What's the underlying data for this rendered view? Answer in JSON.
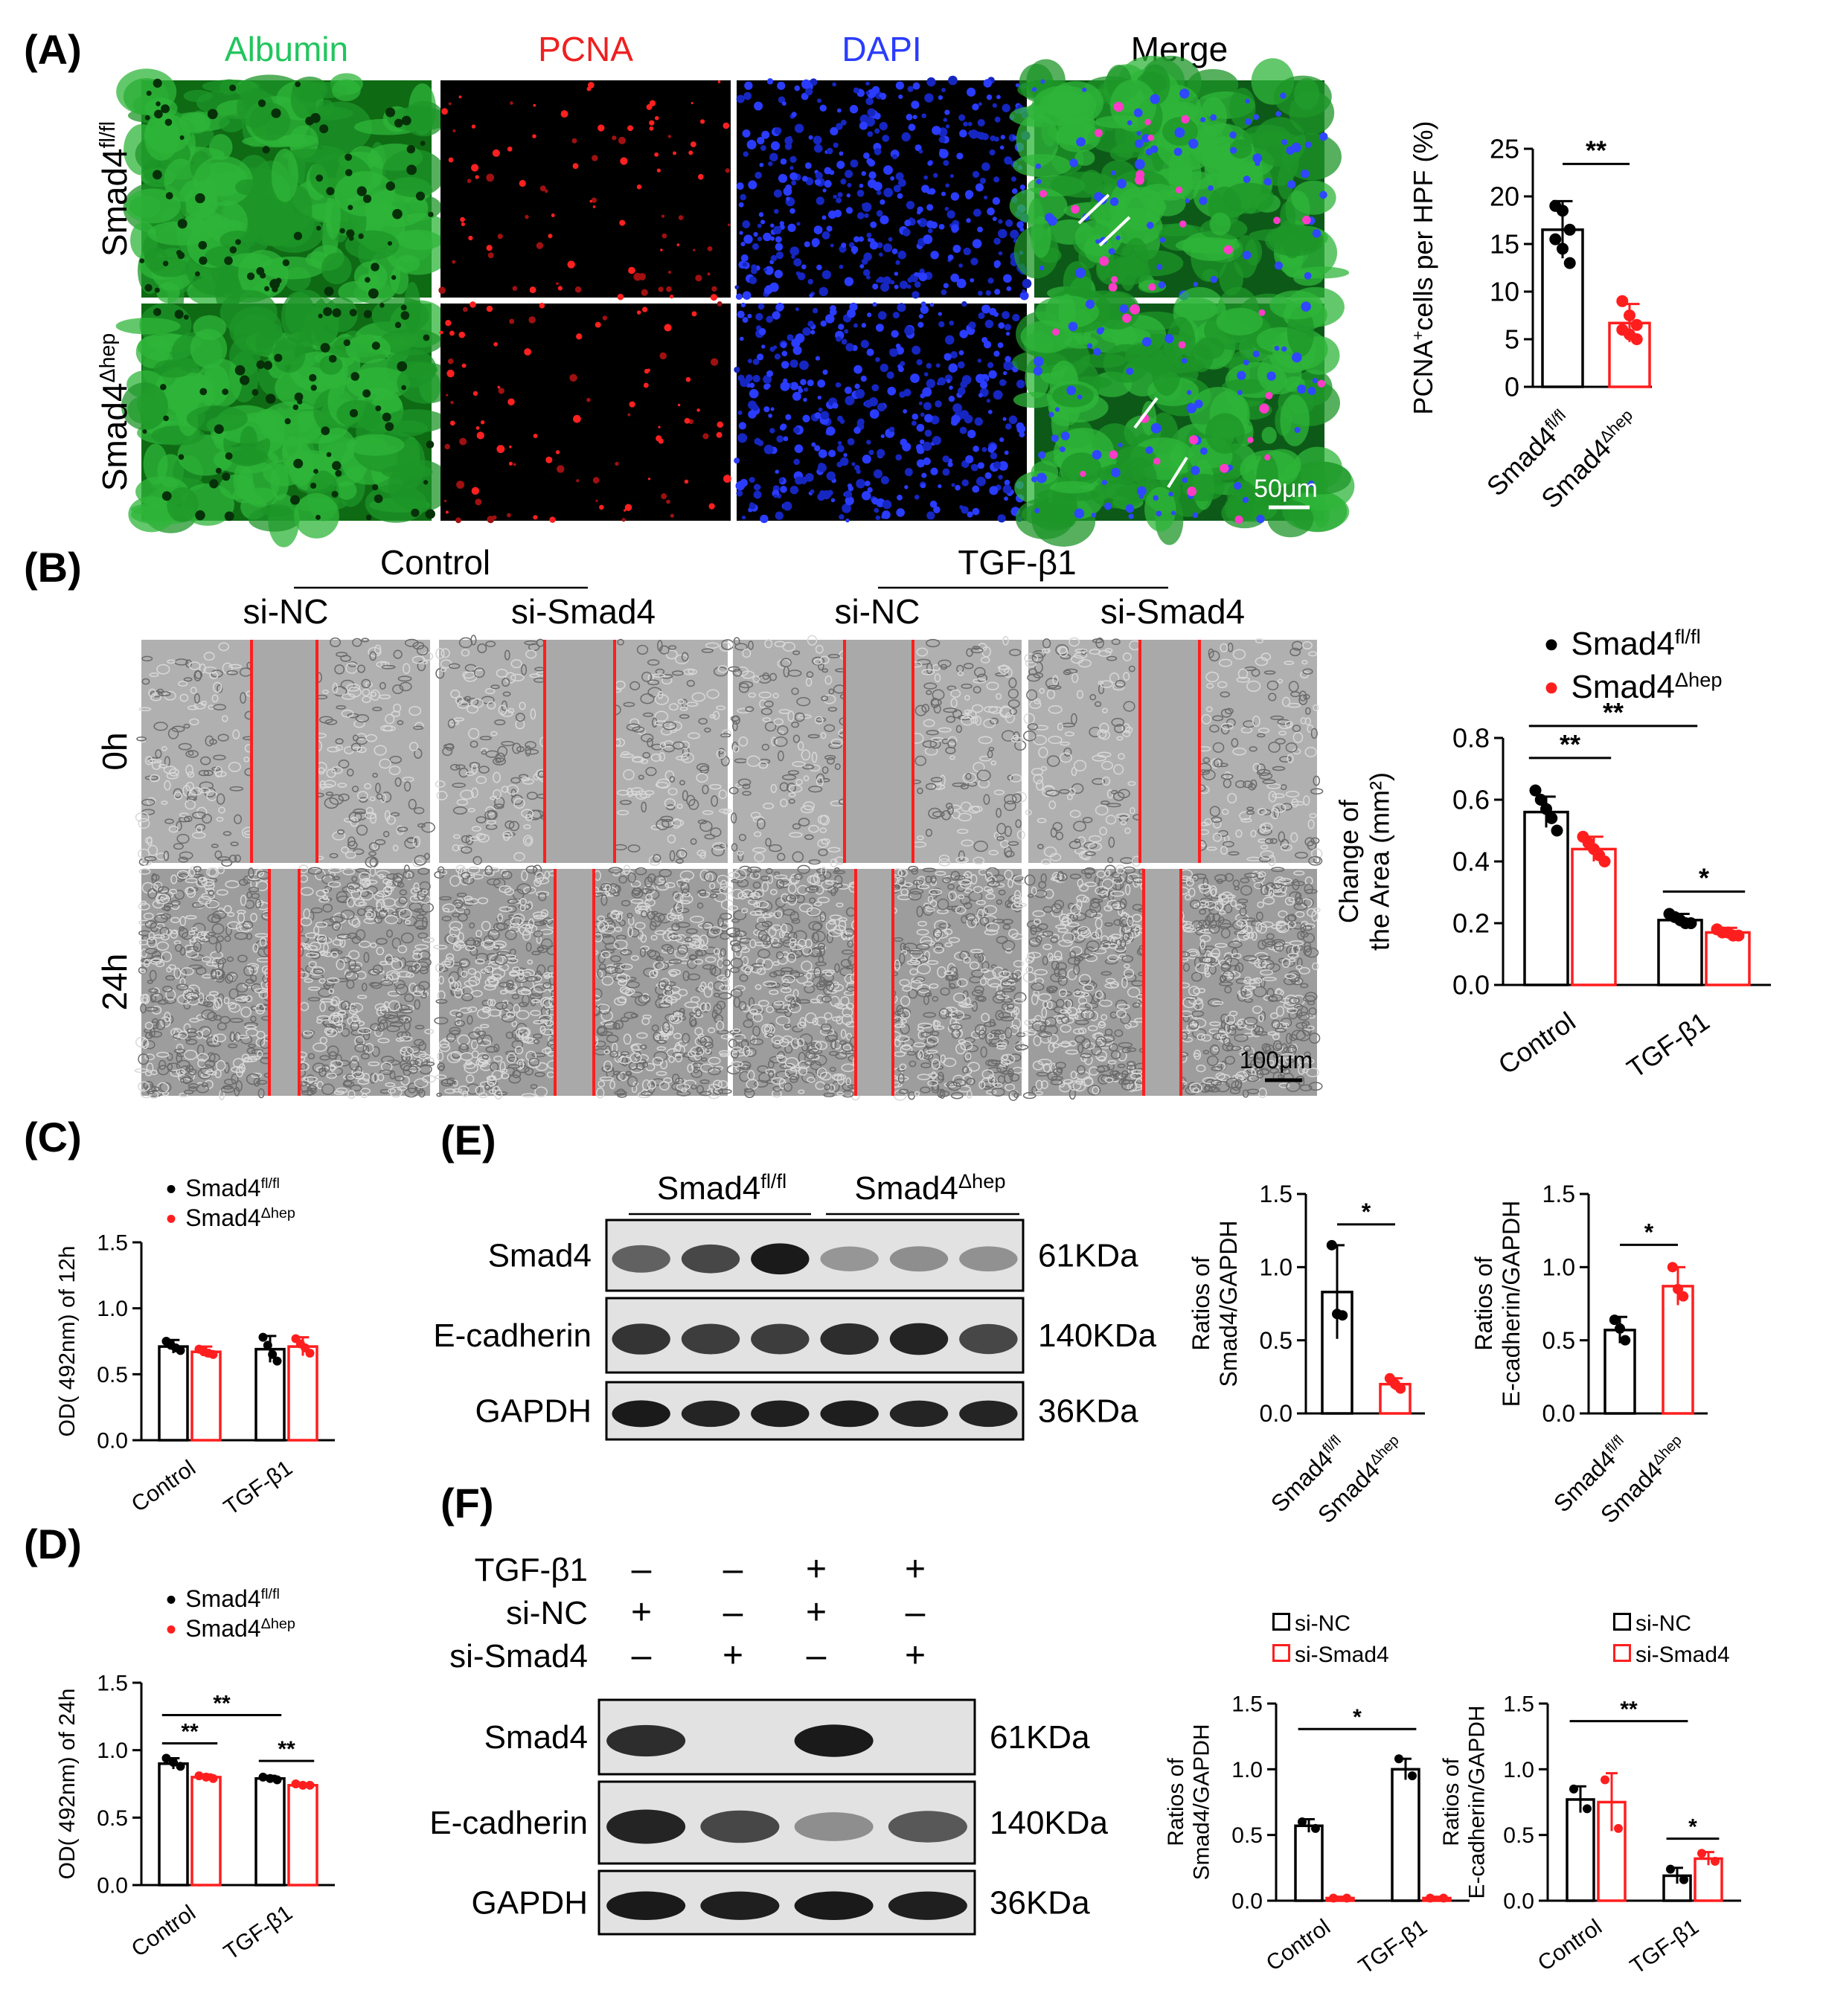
{
  "panels": {
    "A": {
      "label": "(A)",
      "columns": [
        "Albumin",
        "PCNA",
        "DAPI",
        "Merge"
      ],
      "column_colors": [
        "#22c55e",
        "#ef2020",
        "#2a3cff",
        "#000000"
      ],
      "rows": [
        {
          "base": "Smad4",
          "sup": "fl/fl"
        },
        {
          "base": "Smad4",
          "sup": "Δhep"
        }
      ],
      "scale_bar": "50μm"
    },
    "B": {
      "label": "(B)",
      "groups": [
        "Control",
        "TGF-β1"
      ],
      "columns": [
        "si-NC",
        "si-Smad4",
        "si-NC",
        "si-Smad4"
      ],
      "rows": [
        "0h",
        "24h"
      ],
      "scale_bar": "100μm"
    },
    "C": {
      "label": "(C)"
    },
    "D": {
      "label": "(D)"
    },
    "E": {
      "label": "(E)",
      "groups": [
        {
          "base": "Smad4",
          "sup": "fl/fl"
        },
        {
          "base": "Smad4",
          "sup": "Δhep"
        }
      ],
      "bands": [
        {
          "name": "Smad4",
          "kda": "61KDa",
          "intensity": [
            0.55,
            0.7,
            0.95,
            0.25,
            0.3,
            0.28
          ]
        },
        {
          "name": "E-cadherin",
          "kda": "140KDa",
          "intensity": [
            0.8,
            0.75,
            0.75,
            0.85,
            0.9,
            0.7
          ]
        },
        {
          "name": "GAPDH",
          "kda": "36KDa",
          "intensity": [
            0.95,
            0.9,
            0.92,
            0.93,
            0.9,
            0.9
          ]
        }
      ]
    },
    "F": {
      "label": "(F)",
      "conditions": [
        {
          "name": "TGF-β1",
          "signs": [
            "–",
            "–",
            "+",
            "+"
          ]
        },
        {
          "name": "si-NC",
          "signs": [
            "+",
            "–",
            "+",
            "–"
          ]
        },
        {
          "name": "si-Smad4",
          "signs": [
            "–",
            "+",
            "–",
            "+"
          ]
        }
      ],
      "bands": [
        {
          "name": "Smad4",
          "kda": "61KDa",
          "intensity": [
            0.85,
            0.0,
            0.95,
            0.0
          ]
        },
        {
          "name": "E-cadherin",
          "kda": "140KDa",
          "intensity": [
            0.9,
            0.7,
            0.3,
            0.6
          ]
        },
        {
          "name": "GAPDH",
          "kda": "36KDa",
          "intensity": [
            0.95,
            0.92,
            0.95,
            0.92
          ]
        }
      ]
    }
  },
  "chart_data": [
    {
      "id": "A",
      "type": "bar",
      "ylabel": {
        "base": "PCNA",
        "sup": "+",
        "rest": "cells per HPF (%)"
      },
      "ylim": [
        0,
        25
      ],
      "yticks": [
        "0",
        "5",
        "10",
        "15",
        "20",
        "25"
      ],
      "categories": [
        {
          "base": "Smad4",
          "sup": "fl/fl"
        },
        {
          "base": "Smad4",
          "sup": "Δhep"
        }
      ],
      "values": [
        16.5,
        6.7
      ],
      "errors": [
        3.0,
        2.0
      ],
      "points": [
        [
          19.0,
          18.5,
          16.5,
          15.5,
          14.5,
          13.0
        ],
        [
          9.0,
          7.5,
          6.5,
          6.0,
          5.5,
          5.0
        ]
      ],
      "significance": [
        {
          "text": "**",
          "from": 0,
          "to": 1
        }
      ]
    },
    {
      "id": "B",
      "type": "bar",
      "ylabel": [
        "Change of",
        "the Area (mm²)"
      ],
      "ylim": [
        0,
        0.8
      ],
      "yticks": [
        "0.0",
        "0.2",
        "0.4",
        "0.6",
        "0.8"
      ],
      "categories": [
        "Control",
        "TGF-β1"
      ],
      "legend": [
        {
          "base": "Smad4",
          "sup": "fl/fl"
        },
        {
          "base": "Smad4",
          "sup": "Δhep"
        }
      ],
      "series": [
        {
          "values": [
            0.56,
            0.21
          ],
          "errors": [
            0.05,
            0.02
          ],
          "points": [
            [
              0.63,
              0.6,
              0.57,
              0.54,
              0.5
            ],
            [
              0.23,
              0.22,
              0.21,
              0.2,
              0.2
            ]
          ]
        },
        {
          "values": [
            0.44,
            0.17
          ],
          "errors": [
            0.04,
            0.015
          ],
          "points": [
            [
              0.48,
              0.46,
              0.44,
              0.42,
              0.4
            ],
            [
              0.18,
              0.17,
              0.17,
              0.16,
              0.16
            ]
          ]
        }
      ],
      "significance": [
        {
          "text": "**",
          "from": [
            0,
            0
          ],
          "to": [
            0,
            1
          ]
        },
        {
          "text": "**",
          "from": [
            0,
            0
          ],
          "to": [
            1,
            0
          ]
        },
        {
          "text": "*",
          "from": [
            1,
            0
          ],
          "to": [
            1,
            1
          ]
        }
      ]
    },
    {
      "id": "C",
      "type": "bar",
      "ylabel": "OD( 492nm) of 12h",
      "ylim": [
        0,
        1.5
      ],
      "yticks": [
        "0.0",
        "0.5",
        "1.0",
        "1.5"
      ],
      "categories": [
        "Control",
        "TGF-β1"
      ],
      "legend": [
        {
          "base": "Smad4",
          "sup": "fl/fl"
        },
        {
          "base": "Smad4",
          "sup": "Δhep"
        }
      ],
      "series": [
        {
          "values": [
            0.71,
            0.69
          ],
          "errors": [
            0.05,
            0.1
          ],
          "points": [
            [
              0.75,
              0.72,
              0.7,
              0.68
            ],
            [
              0.78,
              0.72,
              0.65,
              0.6
            ]
          ]
        },
        {
          "values": [
            0.67,
            0.71
          ],
          "errors": [
            0.04,
            0.07
          ],
          "points": [
            [
              0.69,
              0.67,
              0.66,
              0.65
            ],
            [
              0.77,
              0.73,
              0.7,
              0.66
            ]
          ]
        }
      ],
      "significance": []
    },
    {
      "id": "D",
      "type": "bar",
      "ylabel": "OD( 492nm) of 24h",
      "ylim": [
        0,
        1.5
      ],
      "yticks": [
        "0.0",
        "0.5",
        "1.0",
        "1.5"
      ],
      "categories": [
        "Control",
        "TGF-β1"
      ],
      "legend": [
        {
          "base": "Smad4",
          "sup": "fl/fl"
        },
        {
          "base": "Smad4",
          "sup": "Δhep"
        }
      ],
      "series": [
        {
          "values": [
            0.9,
            0.79
          ],
          "errors": [
            0.04,
            0.02
          ],
          "points": [
            [
              0.94,
              0.91,
              0.88
            ],
            [
              0.8,
              0.79,
              0.78
            ]
          ]
        },
        {
          "values": [
            0.8,
            0.74
          ],
          "errors": [
            0.02,
            0.01
          ],
          "points": [
            [
              0.81,
              0.8,
              0.79
            ],
            [
              0.75,
              0.74,
              0.74
            ]
          ]
        }
      ],
      "significance": [
        {
          "text": "**",
          "from": [
            0,
            0
          ],
          "to": [
            0,
            1
          ]
        },
        {
          "text": "**",
          "from": [
            0,
            0
          ],
          "to": [
            1,
            0
          ]
        },
        {
          "text": "**",
          "from": [
            1,
            0
          ],
          "to": [
            1,
            1
          ]
        }
      ]
    },
    {
      "id": "E1",
      "type": "bar",
      "ylabel": [
        "Ratios of",
        "Smad4/GAPDH"
      ],
      "ylim": [
        0,
        1.5
      ],
      "yticks": [
        "0.0",
        "0.5",
        "1.0",
        "1.5"
      ],
      "categories": [
        {
          "base": "Smad4",
          "sup": "fl/fl"
        },
        {
          "base": "Smad4",
          "sup": "Δhep"
        }
      ],
      "values": [
        0.83,
        0.2
      ],
      "errors": [
        0.32,
        0.04
      ],
      "points": [
        [
          1.15,
          0.68,
          0.67
        ],
        [
          0.24,
          0.2,
          0.17
        ]
      ],
      "significance": [
        {
          "text": "*",
          "from": 0,
          "to": 1
        }
      ]
    },
    {
      "id": "E2",
      "type": "bar",
      "ylabel": [
        "Ratios of",
        "E-cadherin/GAPDH"
      ],
      "ylim": [
        0,
        1.5
      ],
      "yticks": [
        "0.0",
        "0.5",
        "1.0",
        "1.5"
      ],
      "categories": [
        {
          "base": "Smad4",
          "sup": "fl/fl"
        },
        {
          "base": "Smad4",
          "sup": "Δhep"
        }
      ],
      "values": [
        0.57,
        0.87
      ],
      "errors": [
        0.09,
        0.13
      ],
      "points": [
        [
          0.64,
          0.58,
          0.5
        ],
        [
          1.0,
          0.85,
          0.8
        ]
      ],
      "significance": [
        {
          "text": "*",
          "from": 0,
          "to": 1
        }
      ]
    },
    {
      "id": "F1",
      "type": "bar",
      "ylabel": [
        "Ratios of",
        "Smad4/GAPDH"
      ],
      "ylim": [
        0,
        1.5
      ],
      "yticks": [
        "0.0",
        "0.5",
        "1.0",
        "1.5"
      ],
      "categories": [
        "Control",
        "TGF-β1"
      ],
      "legend": [
        "si-NC",
        "si-Smad4"
      ],
      "series": [
        {
          "values": [
            0.57,
            1.0
          ],
          "errors": [
            0.05,
            0.08
          ],
          "points": [
            [
              0.6,
              0.55
            ],
            [
              1.08,
              0.95
            ]
          ]
        },
        {
          "values": [
            0.02,
            0.02
          ],
          "errors": [
            0.01,
            0.01
          ],
          "points": [
            [
              0.02,
              0.02
            ],
            [
              0.02,
              0.02
            ]
          ]
        }
      ],
      "significance": [
        {
          "text": "*",
          "from": [
            0,
            0
          ],
          "to": [
            1,
            0
          ]
        }
      ]
    },
    {
      "id": "F2",
      "type": "bar",
      "ylabel": [
        "Ratios of",
        "E-cadherin/GAPDH"
      ],
      "ylim": [
        0,
        1.5
      ],
      "yticks": [
        "0.0",
        "0.5",
        "1.0",
        "1.5"
      ],
      "categories": [
        "Control",
        "TGF-β1"
      ],
      "legend": [
        "si-NC",
        "si-Smad4"
      ],
      "series": [
        {
          "values": [
            0.77,
            0.19
          ],
          "errors": [
            0.1,
            0.06
          ],
          "points": [
            [
              0.85,
              0.7
            ],
            [
              0.24,
              0.16
            ]
          ]
        },
        {
          "values": [
            0.75,
            0.32
          ],
          "errors": [
            0.22,
            0.05
          ],
          "points": [
            [
              0.92,
              0.55
            ],
            [
              0.36,
              0.3
            ]
          ]
        }
      ],
      "significance": [
        {
          "text": "**",
          "from": [
            0,
            0
          ],
          "to": [
            1,
            0
          ]
        },
        {
          "text": "*",
          "from": [
            1,
            0
          ],
          "to": [
            1,
            1
          ]
        }
      ]
    }
  ],
  "colors": {
    "series1": "#000000",
    "series2": "#ff1e1e",
    "albumin": "#22c55e",
    "pcna": "#ef2020",
    "dapi": "#2a3cff"
  }
}
